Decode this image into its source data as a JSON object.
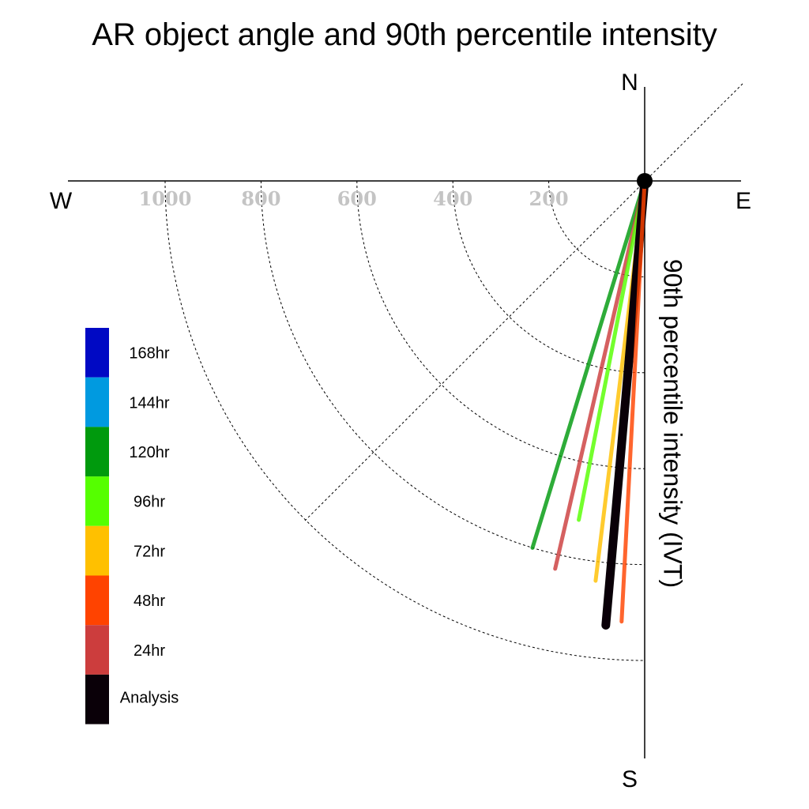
{
  "chart_data": {
    "type": "polar-vector",
    "title": "AR object angle and 90th percentile intensity",
    "radial_label": "90th percentile intensity (IVT)",
    "compass": {
      "north": "N",
      "south": "S",
      "east": "E",
      "west": "W"
    },
    "ring_values": [
      200,
      400,
      600,
      800,
      1000
    ],
    "ring_labels": [
      "1000",
      "800",
      "600",
      "400",
      "200"
    ],
    "radial_max": 1000,
    "series": [
      {
        "name": "120hr",
        "color": "#009a0d",
        "angle_deg": 197,
        "intensity": 800
      },
      {
        "name": "24hr",
        "color": "#cc3d3d",
        "angle_deg": 193,
        "intensity": 830
      },
      {
        "name": "96hr",
        "color": "#55ff00",
        "angle_deg": 191,
        "intensity": 720
      },
      {
        "name": "72hr",
        "color": "#ffc000",
        "angle_deg": 187,
        "intensity": 840
      },
      {
        "name": "Analysis",
        "color": "#0a0008",
        "angle_deg": 185,
        "intensity": 930
      },
      {
        "name": "48hr",
        "color": "#ff4300",
        "angle_deg": 183,
        "intensity": 920
      }
    ],
    "legend": [
      {
        "label": "168hr",
        "color": "#0009c4"
      },
      {
        "label": "144hr",
        "color": "#009ae0"
      },
      {
        "label": "120hr",
        "color": "#009a0d"
      },
      {
        "label": "96hr",
        "color": "#55ff00"
      },
      {
        "label": "72hr",
        "color": "#ffc000"
      },
      {
        "label": "48hr",
        "color": "#ff4300"
      },
      {
        "label": "24hr",
        "color": "#cc3d3d"
      },
      {
        "label": "Analysis",
        "color": "#0a0008"
      }
    ],
    "legend_position": "left"
  }
}
